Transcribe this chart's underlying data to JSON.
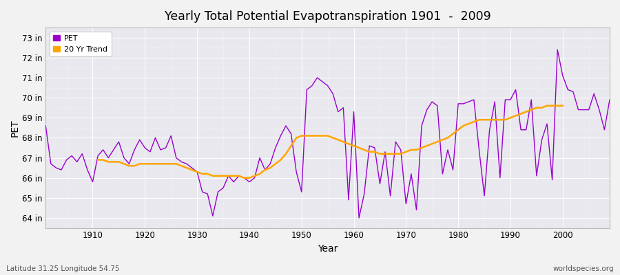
{
  "title": "Yearly Total Potential Evapotranspiration 1901  -  2009",
  "xlabel": "Year",
  "ylabel": "PET",
  "subtitle_left": "Latitude 31.25 Longitude 54.75",
  "subtitle_right": "worldspecies.org",
  "pet_color": "#9900CC",
  "trend_color": "#FFA500",
  "bg_color": "#f2f2f2",
  "plot_bg_color": "#e8e8ee",
  "ylim": [
    63.5,
    73.5
  ],
  "yticks": [
    64,
    65,
    66,
    67,
    68,
    69,
    70,
    71,
    72,
    73
  ],
  "ytick_labels": [
    "64 in",
    "65 in",
    "66 in",
    "67 in",
    "68 in",
    "69 in",
    "70 in",
    "71 in",
    "72 in",
    "73 in"
  ],
  "xticks": [
    1910,
    1920,
    1930,
    1940,
    1950,
    1960,
    1970,
    1980,
    1990,
    2000
  ],
  "years": [
    1901,
    1902,
    1903,
    1904,
    1905,
    1906,
    1907,
    1908,
    1909,
    1910,
    1911,
    1912,
    1913,
    1914,
    1915,
    1916,
    1917,
    1918,
    1919,
    1920,
    1921,
    1922,
    1923,
    1924,
    1925,
    1926,
    1927,
    1928,
    1929,
    1930,
    1931,
    1932,
    1933,
    1934,
    1935,
    1936,
    1937,
    1938,
    1939,
    1940,
    1941,
    1942,
    1943,
    1944,
    1945,
    1946,
    1947,
    1948,
    1949,
    1950,
    1951,
    1952,
    1953,
    1954,
    1955,
    1956,
    1957,
    1958,
    1959,
    1960,
    1961,
    1962,
    1963,
    1964,
    1965,
    1966,
    1967,
    1968,
    1969,
    1970,
    1971,
    1972,
    1973,
    1974,
    1975,
    1976,
    1977,
    1978,
    1979,
    1980,
    1981,
    1982,
    1983,
    1984,
    1985,
    1986,
    1987,
    1988,
    1989,
    1990,
    1991,
    1992,
    1993,
    1994,
    1995,
    1996,
    1997,
    1998,
    1999,
    2000,
    2001,
    2002,
    2003,
    2004,
    2005,
    2006,
    2007,
    2008,
    2009
  ],
  "pet_values": [
    68.6,
    66.7,
    66.5,
    66.4,
    66.9,
    67.1,
    66.8,
    67.2,
    66.4,
    65.8,
    67.1,
    67.4,
    67.0,
    67.4,
    67.8,
    67.0,
    66.7,
    67.4,
    67.9,
    67.5,
    67.3,
    68.0,
    67.4,
    67.5,
    68.1,
    67.0,
    66.8,
    66.7,
    66.5,
    66.3,
    65.3,
    65.2,
    64.1,
    65.3,
    65.5,
    66.1,
    65.8,
    66.1,
    66.0,
    65.8,
    66.0,
    67.0,
    66.4,
    66.7,
    67.5,
    68.1,
    68.6,
    68.2,
    66.3,
    65.3,
    70.4,
    70.6,
    71.0,
    70.8,
    70.6,
    70.2,
    69.3,
    69.5,
    64.9,
    69.3,
    64.0,
    65.2,
    67.6,
    67.5,
    65.7,
    67.3,
    65.1,
    67.8,
    67.4,
    64.7,
    66.2,
    64.4,
    68.6,
    69.4,
    69.8,
    69.6,
    66.2,
    67.4,
    66.4,
    69.7,
    69.7,
    69.8,
    69.9,
    67.4,
    65.1,
    68.4,
    69.8,
    66.0,
    69.9,
    69.9,
    70.4,
    68.4,
    68.4,
    69.9,
    66.1,
    67.9,
    68.7,
    65.9,
    72.4,
    71.1,
    70.4,
    70.3,
    69.4,
    69.4,
    69.4,
    70.2,
    69.4,
    68.4,
    69.9
  ],
  "trend_values": [
    null,
    null,
    null,
    null,
    null,
    null,
    null,
    null,
    null,
    null,
    66.9,
    66.9,
    66.8,
    66.8,
    66.8,
    66.7,
    66.6,
    66.6,
    66.7,
    66.7,
    66.7,
    66.7,
    66.7,
    66.7,
    66.7,
    66.7,
    66.6,
    66.5,
    66.4,
    66.3,
    66.2,
    66.2,
    66.1,
    66.1,
    66.1,
    66.1,
    66.1,
    66.1,
    66.0,
    66.0,
    66.1,
    66.2,
    66.4,
    66.5,
    66.7,
    66.9,
    67.2,
    67.6,
    68.0,
    68.1,
    68.1,
    68.1,
    68.1,
    68.1,
    68.1,
    68.0,
    67.9,
    67.8,
    67.7,
    67.6,
    67.5,
    67.4,
    67.3,
    67.3,
    67.2,
    67.2,
    67.2,
    67.2,
    67.2,
    67.3,
    67.4,
    67.4,
    67.5,
    67.6,
    67.7,
    67.8,
    67.9,
    68.0,
    68.2,
    68.4,
    68.6,
    68.7,
    68.8,
    68.9,
    68.9,
    68.9,
    68.9,
    68.9,
    68.9,
    69.0,
    69.1,
    69.2,
    69.3,
    69.4,
    69.5,
    69.5,
    69.6,
    69.6,
    69.6,
    69.6,
    null,
    null,
    null,
    null,
    null,
    null,
    null,
    null,
    null
  ]
}
